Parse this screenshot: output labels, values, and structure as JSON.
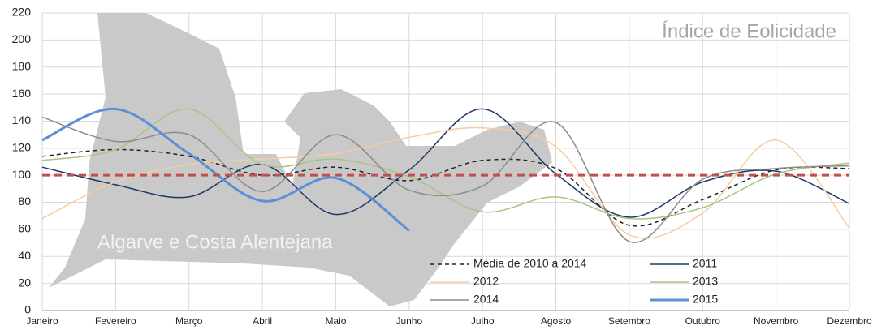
{
  "chart_data": {
    "type": "line",
    "annotation": "Índice de Eolicidade",
    "map_label": "Algarve e Costa Alentejana",
    "categories": [
      "Janeiro",
      "Fevereiro",
      "Março",
      "Abril",
      "Maio",
      "Junho",
      "Julho",
      "Agosto",
      "Setembro",
      "Outubro",
      "Novembro",
      "Dezembro"
    ],
    "series": [
      {
        "name": "Média de 2010 a 2014",
        "color": "#222222",
        "dash": "dashed",
        "width": 1.5,
        "values": [
          114,
          119,
          114,
          100,
          106,
          96,
          111,
          105,
          63,
          82,
          104,
          105
        ]
      },
      {
        "name": "2011",
        "color": "#1f3864",
        "dash": "solid",
        "width": 1.5,
        "values": [
          106,
          93,
          84,
          108,
          71,
          104,
          149,
          101,
          69,
          95,
          103,
          79
        ]
      },
      {
        "name": "2012",
        "color": "#f8cba0",
        "dash": "solid",
        "width": 1.5,
        "values": [
          68,
          95,
          108,
          112,
          116,
          128,
          135,
          121,
          56,
          72,
          126,
          61
        ]
      },
      {
        "name": "2013",
        "color": "#a9c47f",
        "dash": "solid",
        "width": 1.5,
        "values": [
          111,
          119,
          149,
          108,
          112,
          99,
          73,
          84,
          68,
          76,
          101,
          109
        ]
      },
      {
        "name": "2014",
        "color": "#8c8c8c",
        "dash": "solid",
        "width": 1.5,
        "values": [
          143,
          125,
          130,
          88,
          130,
          89,
          92,
          139,
          51,
          97,
          105,
          107
        ]
      },
      {
        "name": "2015",
        "color": "#5b8fd6",
        "dash": "solid",
        "width": 3,
        "values": [
          126,
          149,
          116,
          81,
          98,
          59,
          null,
          null,
          null,
          null,
          null,
          null
        ]
      }
    ],
    "reference_line": {
      "value": 100,
      "color": "#c0504d"
    },
    "ylim": [
      0,
      220
    ],
    "yticks": [
      0,
      20,
      40,
      60,
      80,
      100,
      120,
      140,
      160,
      180,
      200,
      220
    ],
    "grid": true
  }
}
